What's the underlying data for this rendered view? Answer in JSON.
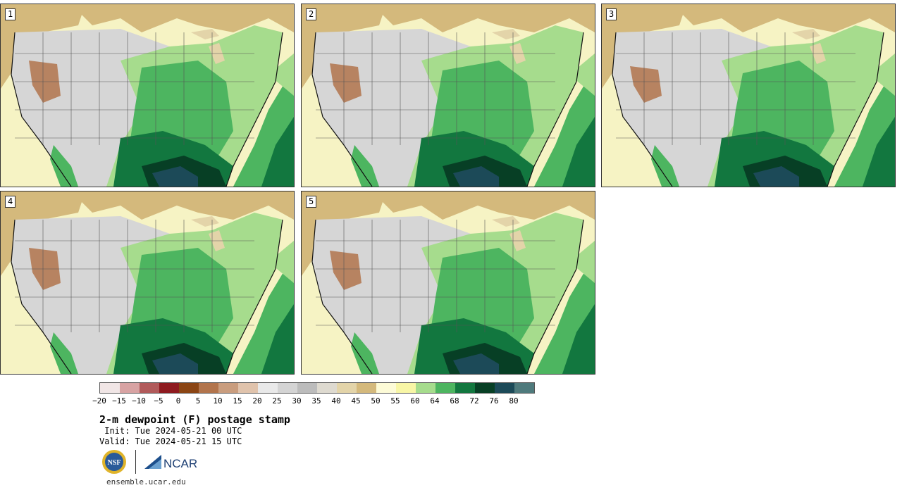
{
  "panels": [
    {
      "label": "1"
    },
    {
      "label": "2"
    },
    {
      "label": "3"
    },
    {
      "label": "4"
    },
    {
      "label": "5"
    }
  ],
  "colorbar": {
    "colors": [
      "#f1e6e6",
      "#d8a3a3",
      "#b15a5a",
      "#8e1a1f",
      "#8b4514",
      "#b2744c",
      "#c99d7e",
      "#e0c3ac",
      "#e9e9e9",
      "#d4d4d4",
      "#bcbcbc",
      "#dedad0",
      "#e3d4a9",
      "#d4b97c",
      "#fdfbd7",
      "#f8f6a6",
      "#a6dc8d",
      "#4db560",
      "#12773f",
      "#073f25",
      "#1c4a58",
      "#4f7a7c"
    ],
    "tick_labels": [
      "−20",
      "−15",
      "−10",
      "−5",
      "0",
      "5",
      "10",
      "15",
      "20",
      "25",
      "30",
      "35",
      "40",
      "45",
      "50",
      "55",
      "60",
      "64",
      "68",
      "72",
      "76",
      "80"
    ]
  },
  "title": "2-m dewpoint (F) postage stamp",
  "init": " Init: Tue 2024-05-21 00 UTC",
  "valid": "Valid: Tue 2024-05-21 15 UTC",
  "logos": {
    "nsf": "NSF",
    "ncar": "NCAR"
  },
  "footer": "ensemble.ucar.edu"
}
